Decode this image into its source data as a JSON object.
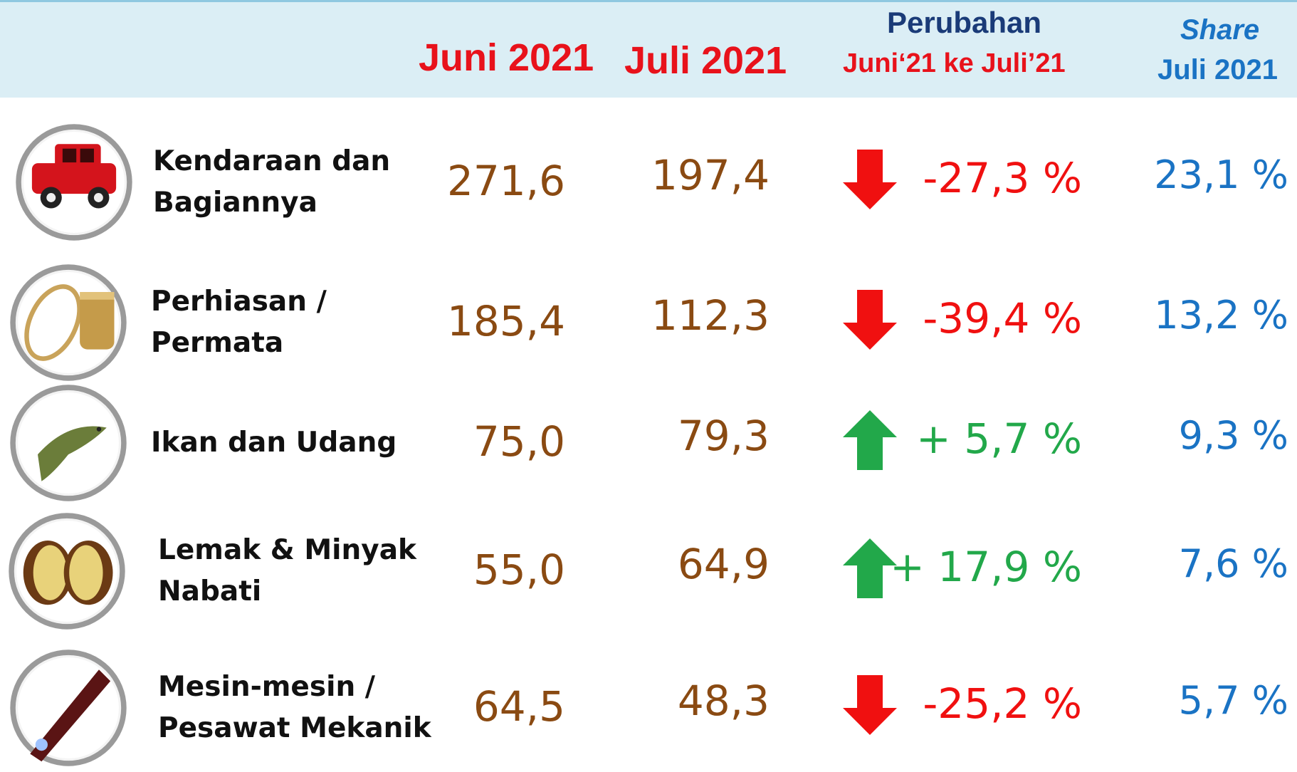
{
  "header": {
    "col_juni": "Juni 2021",
    "col_juli": "Juli 2021",
    "change_title": "Perubahan",
    "change_sub": "Juni‘21 ke Juli’21",
    "share_title": "Share",
    "share_sub": "Juli 2021"
  },
  "rows": [
    {
      "label": [
        "Kendaraan dan",
        "Bagiannya"
      ],
      "juni": "271,6",
      "juli": "197,4",
      "change": "-27,3 %",
      "direction": "down",
      "share": "23,1 %"
    },
    {
      "label": [
        "Perhiasan /",
        "Permata"
      ],
      "juni": "185,4",
      "juli": "112,3",
      "change": "-39,4 %",
      "direction": "down",
      "share": "13,2 %"
    },
    {
      "label": [
        "Ikan dan Udang"
      ],
      "juni": "75,0",
      "juli": "79,3",
      "change": "+ 5,7 %",
      "direction": "up",
      "share": "9,3 %"
    },
    {
      "label": [
        "Lemak & Minyak",
        "Nabati"
      ],
      "juni": "55,0",
      "juli": "64,9",
      "change": "+ 17,9 %",
      "direction": "up",
      "share": "7,6 %"
    },
    {
      "label": [
        "Mesin-mesin /",
        "Pesawat Mekanik"
      ],
      "juni": "64,5",
      "juli": "48,3",
      "change": "-25,2 %",
      "direction": "down",
      "share": "5,7 %"
    }
  ]
}
